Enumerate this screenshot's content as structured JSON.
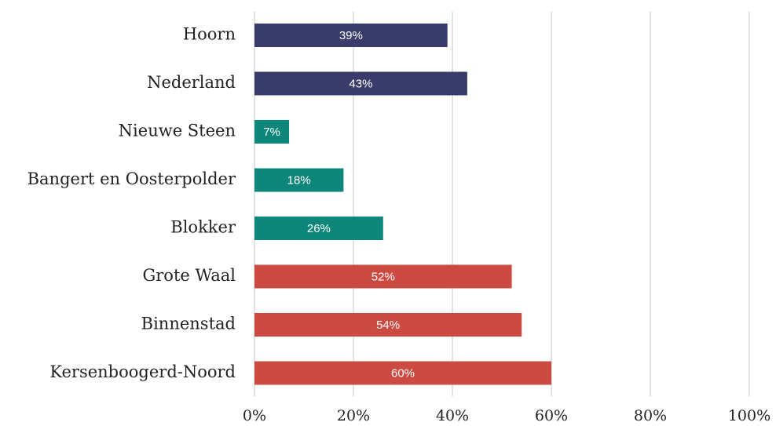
{
  "chart_data": {
    "type": "bar",
    "orientation": "horizontal",
    "categories": [
      "Hoorn",
      "Nederland",
      "Nieuwe Steen",
      "Bangert en Oosterpolder",
      "Blokker",
      "Grote Waal",
      "Binnenstad",
      "Kersenboogerd-Noord"
    ],
    "values": [
      39,
      43,
      7,
      18,
      26,
      52,
      54,
      60
    ],
    "value_labels": [
      "39%",
      "43%",
      "7%",
      "18%",
      "26%",
      "52%",
      "54%",
      "60%"
    ],
    "colors": [
      "#393c6b",
      "#393c6b",
      "#0e8679",
      "#0e8679",
      "#0e8679",
      "#cb4b43",
      "#cb4b43",
      "#cb4b43"
    ],
    "xlim": [
      0,
      100
    ],
    "xticks": [
      {
        "value": 0,
        "label": "0%"
      },
      {
        "value": 20,
        "label": "20%"
      },
      {
        "value": 40,
        "label": "40%"
      },
      {
        "value": 60,
        "label": "60%"
      },
      {
        "value": 80,
        "label": "80%"
      },
      {
        "value": 100,
        "label": "100%"
      }
    ],
    "grid": true
  }
}
